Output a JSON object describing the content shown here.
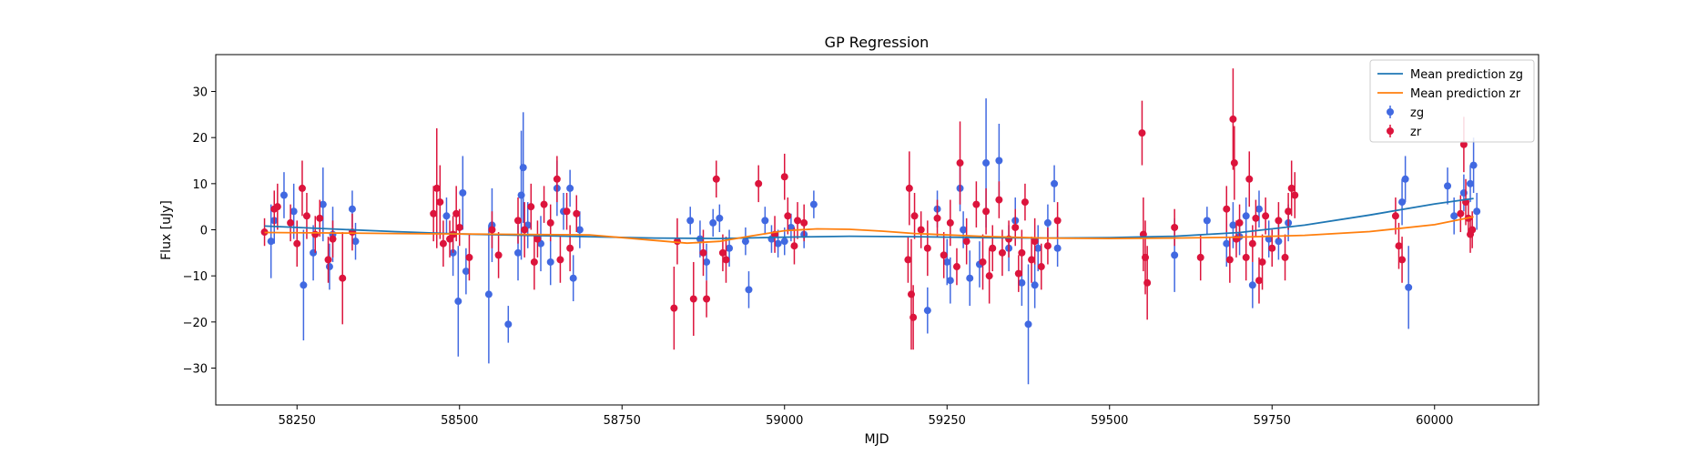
{
  "chart_data": {
    "type": "scatter",
    "title": "GP Regression",
    "xlabel": "MJD",
    "ylabel": "Flux [uJy]",
    "xlim": [
      58125,
      60160
    ],
    "ylim": [
      -38,
      38
    ],
    "x_ticks": [
      58250,
      58500,
      58750,
      59000,
      59250,
      59500,
      59750,
      60000
    ],
    "x_tick_labels": [
      "58250",
      "58500",
      "58750",
      "59000",
      "59250",
      "59500",
      "59750",
      "60000"
    ],
    "y_ticks": [
      -30,
      -20,
      -10,
      0,
      10,
      20,
      30
    ],
    "y_tick_labels": [
      "−30",
      "−20",
      "−10",
      "0",
      "10",
      "20",
      "30"
    ],
    "grid": false,
    "legend_position": "top-right",
    "colors": {
      "zg_points": "#4169e1",
      "zr_points": "#dc143c",
      "mean_zg": "#1f77b4",
      "mean_zr": "#ff7f0e"
    },
    "lines": [
      {
        "name": "Mean prediction zg",
        "x": [
          58200,
          58300,
          58400,
          58500,
          58600,
          58700,
          58800,
          58900,
          59000,
          59100,
          59200,
          59300,
          59400,
          59500,
          59600,
          59700,
          59800,
          59900,
          60000,
          60060
        ],
        "y": [
          0.8,
          0.2,
          -0.4,
          -0.9,
          -1.2,
          -1.5,
          -1.8,
          -1.9,
          -1.6,
          -1.4,
          -1.5,
          -1.7,
          -1.8,
          -1.7,
          -1.4,
          -0.6,
          1.0,
          3.2,
          5.6,
          6.8
        ]
      },
      {
        "name": "Mean prediction zr",
        "x": [
          58200,
          58300,
          58400,
          58500,
          58600,
          58700,
          58800,
          58850,
          58900,
          58950,
          59000,
          59050,
          59100,
          59150,
          59200,
          59300,
          59400,
          59500,
          59600,
          59700,
          59800,
          59900,
          60000,
          60060
        ],
        "y": [
          -0.6,
          -0.7,
          -0.8,
          -0.9,
          -1.0,
          -1.1,
          -2.3,
          -2.9,
          -2.5,
          -1.3,
          -0.2,
          0.2,
          0.1,
          -0.3,
          -0.8,
          -1.4,
          -1.8,
          -1.9,
          -1.8,
          -1.6,
          -1.2,
          -0.4,
          1.1,
          2.8
        ]
      }
    ],
    "series": [
      {
        "name": "zg",
        "points": [
          [
            58210,
            -2.5,
            8
          ],
          [
            58215,
            2,
            5
          ],
          [
            58230,
            7.5,
            5
          ],
          [
            58245,
            4,
            6
          ],
          [
            58260,
            -12,
            12
          ],
          [
            58275,
            -5,
            6
          ],
          [
            58290,
            5.5,
            8
          ],
          [
            58300,
            -8,
            5
          ],
          [
            58305,
            -1,
            6
          ],
          [
            58335,
            4.5,
            4
          ],
          [
            58340,
            -2.5,
            4
          ],
          [
            58480,
            3,
            4
          ],
          [
            58490,
            -5,
            5
          ],
          [
            58498,
            -15.5,
            12
          ],
          [
            58505,
            8,
            8
          ],
          [
            58510,
            -9,
            5
          ],
          [
            58545,
            -14,
            15
          ],
          [
            58550,
            1,
            8
          ],
          [
            58575,
            -20.5,
            4
          ],
          [
            58590,
            -5,
            6
          ],
          [
            58595,
            7.5,
            14
          ],
          [
            58598,
            13.5,
            12
          ],
          [
            58605,
            1,
            5
          ],
          [
            58625,
            -3,
            6
          ],
          [
            58640,
            -7,
            5
          ],
          [
            58650,
            9,
            6
          ],
          [
            58660,
            4,
            4
          ],
          [
            58670,
            9,
            4
          ],
          [
            58675,
            -10.5,
            5
          ],
          [
            58685,
            0,
            4
          ],
          [
            58855,
            2,
            3
          ],
          [
            58870,
            -2,
            4
          ],
          [
            58880,
            -7,
            4
          ],
          [
            58890,
            1.5,
            3
          ],
          [
            58900,
            2.5,
            3
          ],
          [
            58915,
            -4,
            4
          ],
          [
            58940,
            -2.5,
            3
          ],
          [
            58945,
            -13,
            4
          ],
          [
            58970,
            2,
            3
          ],
          [
            58980,
            -2,
            3
          ],
          [
            58990,
            -3,
            3
          ],
          [
            59000,
            -2.5,
            3
          ],
          [
            59010,
            0.5,
            3
          ],
          [
            59030,
            -1,
            3
          ],
          [
            59045,
            5.5,
            3
          ],
          [
            59220,
            -17.5,
            5
          ],
          [
            59235,
            4.5,
            4
          ],
          [
            59250,
            -7,
            5
          ],
          [
            59255,
            -11,
            5
          ],
          [
            59270,
            9,
            5
          ],
          [
            59275,
            0,
            4
          ],
          [
            59285,
            -10.5,
            6
          ],
          [
            59300,
            -7.5,
            5
          ],
          [
            59310,
            14.5,
            14
          ],
          [
            59330,
            15,
            8
          ],
          [
            59345,
            -4,
            5
          ],
          [
            59355,
            2,
            5
          ],
          [
            59365,
            -11.5,
            5
          ],
          [
            59375,
            -20.5,
            13
          ],
          [
            59385,
            -12,
            5
          ],
          [
            59390,
            -4,
            5
          ],
          [
            59405,
            1.5,
            4
          ],
          [
            59415,
            10,
            4
          ],
          [
            59420,
            -4,
            4
          ],
          [
            59600,
            -5.5,
            8
          ],
          [
            59650,
            2,
            3
          ],
          [
            59680,
            -3,
            5
          ],
          [
            59690,
            1,
            5
          ],
          [
            59700,
            -1.5,
            4
          ],
          [
            59710,
            3,
            4
          ],
          [
            59720,
            -12,
            5
          ],
          [
            59730,
            4.5,
            4
          ],
          [
            59745,
            -2,
            4
          ],
          [
            59760,
            -2.5,
            4
          ],
          [
            59775,
            1.5,
            4
          ],
          [
            59950,
            6,
            5
          ],
          [
            59955,
            11,
            5
          ],
          [
            59960,
            -12.5,
            9
          ],
          [
            60020,
            9.5,
            4
          ],
          [
            60030,
            3,
            4
          ],
          [
            60045,
            8,
            4
          ],
          [
            60055,
            10,
            4
          ],
          [
            60060,
            14,
            6
          ],
          [
            60065,
            4,
            4
          ]
        ]
      },
      {
        "name": "zr",
        "points": [
          [
            58200,
            -0.5,
            3
          ],
          [
            58215,
            4.5,
            4
          ],
          [
            58220,
            5,
            5
          ],
          [
            58240,
            1.5,
            4
          ],
          [
            58250,
            -3,
            5
          ],
          [
            58258,
            9,
            6
          ],
          [
            58265,
            3,
            5
          ],
          [
            58278,
            -1,
            4
          ],
          [
            58285,
            2.5,
            4
          ],
          [
            58298,
            -6.5,
            5
          ],
          [
            58305,
            -2,
            4
          ],
          [
            58320,
            -10.5,
            10
          ],
          [
            58335,
            -0.5,
            4
          ],
          [
            58460,
            3.5,
            6
          ],
          [
            58465,
            9,
            13
          ],
          [
            58470,
            6,
            8
          ],
          [
            58475,
            -3,
            5
          ],
          [
            58485,
            -2,
            4
          ],
          [
            58490,
            -1,
            4
          ],
          [
            58495,
            3.5,
            6
          ],
          [
            58500,
            0.5,
            4
          ],
          [
            58515,
            -6,
            5
          ],
          [
            58550,
            0,
            4
          ],
          [
            58560,
            -5.5,
            5
          ],
          [
            58590,
            2,
            5
          ],
          [
            58600,
            0,
            6
          ],
          [
            58610,
            5,
            5
          ],
          [
            58615,
            -7,
            6
          ],
          [
            58620,
            -2,
            4
          ],
          [
            58630,
            5.5,
            4
          ],
          [
            58640,
            1.5,
            4
          ],
          [
            58650,
            11,
            5
          ],
          [
            58655,
            -6.5,
            5
          ],
          [
            58665,
            4,
            4
          ],
          [
            58670,
            -4,
            5
          ],
          [
            58680,
            3.5,
            4
          ],
          [
            58830,
            -17,
            9
          ],
          [
            58835,
            -2.5,
            5
          ],
          [
            58860,
            -15,
            8
          ],
          [
            58875,
            -5,
            5
          ],
          [
            58880,
            -15,
            4
          ],
          [
            58895,
            11,
            4
          ],
          [
            58905,
            -5,
            4
          ],
          [
            58910,
            -6.5,
            5
          ],
          [
            58960,
            10,
            4
          ],
          [
            58985,
            -1,
            4
          ],
          [
            59000,
            11.5,
            5
          ],
          [
            59005,
            3,
            4
          ],
          [
            59015,
            -3.5,
            4
          ],
          [
            59020,
            2,
            4
          ],
          [
            59030,
            1.5,
            4
          ],
          [
            59190,
            -6.5,
            5
          ],
          [
            59192,
            9,
            8
          ],
          [
            59195,
            -14,
            12
          ],
          [
            59198,
            -19,
            7
          ],
          [
            59200,
            3,
            5
          ],
          [
            59210,
            0,
            4
          ],
          [
            59220,
            -4,
            6
          ],
          [
            59235,
            2.5,
            4
          ],
          [
            59245,
            -5.5,
            5
          ],
          [
            59255,
            1.5,
            5
          ],
          [
            59265,
            -8,
            4
          ],
          [
            59270,
            14.5,
            9
          ],
          [
            59280,
            -2.5,
            5
          ],
          [
            59295,
            5.5,
            5
          ],
          [
            59305,
            -7,
            6
          ],
          [
            59310,
            4,
            5
          ],
          [
            59315,
            -10,
            6
          ],
          [
            59320,
            -4,
            5
          ],
          [
            59330,
            6.5,
            4
          ],
          [
            59335,
            -5,
            5
          ],
          [
            59345,
            -2,
            4
          ],
          [
            59355,
            0.5,
            4
          ],
          [
            59360,
            -9.5,
            4
          ],
          [
            59365,
            -5,
            5
          ],
          [
            59370,
            6,
            4
          ],
          [
            59380,
            -6.5,
            5
          ],
          [
            59385,
            -2.5,
            5
          ],
          [
            59395,
            -8,
            5
          ],
          [
            59405,
            -3.5,
            4
          ],
          [
            59420,
            2,
            4
          ],
          [
            59550,
            21,
            7
          ],
          [
            59552,
            -1,
            8
          ],
          [
            59555,
            -6,
            8
          ],
          [
            59558,
            -11.5,
            8
          ],
          [
            59600,
            0.5,
            4
          ],
          [
            59640,
            -6,
            5
          ],
          [
            59680,
            4.5,
            5
          ],
          [
            59685,
            -6.5,
            5
          ],
          [
            59690,
            24,
            11
          ],
          [
            59692,
            14.5,
            8
          ],
          [
            59695,
            -2,
            4
          ],
          [
            59700,
            1.5,
            4
          ],
          [
            59710,
            -6,
            5
          ],
          [
            59715,
            11,
            6
          ],
          [
            59720,
            -3,
            4
          ],
          [
            59725,
            2.5,
            4
          ],
          [
            59730,
            -11,
            5
          ],
          [
            59735,
            -7,
            6
          ],
          [
            59740,
            3,
            4
          ],
          [
            59750,
            -4,
            4
          ],
          [
            59760,
            2,
            4
          ],
          [
            59770,
            -6,
            5
          ],
          [
            59775,
            4,
            4
          ],
          [
            59780,
            9,
            6
          ],
          [
            59785,
            7.5,
            5
          ],
          [
            59940,
            3,
            4
          ],
          [
            59945,
            -3.5,
            5
          ],
          [
            59950,
            -6.5,
            5
          ],
          [
            60040,
            3.5,
            4
          ],
          [
            60045,
            18.5,
            6
          ],
          [
            60048,
            6,
            5
          ],
          [
            60052,
            2.5,
            4
          ],
          [
            60055,
            -1,
            4
          ],
          [
            60058,
            0,
            4
          ]
        ]
      }
    ]
  }
}
